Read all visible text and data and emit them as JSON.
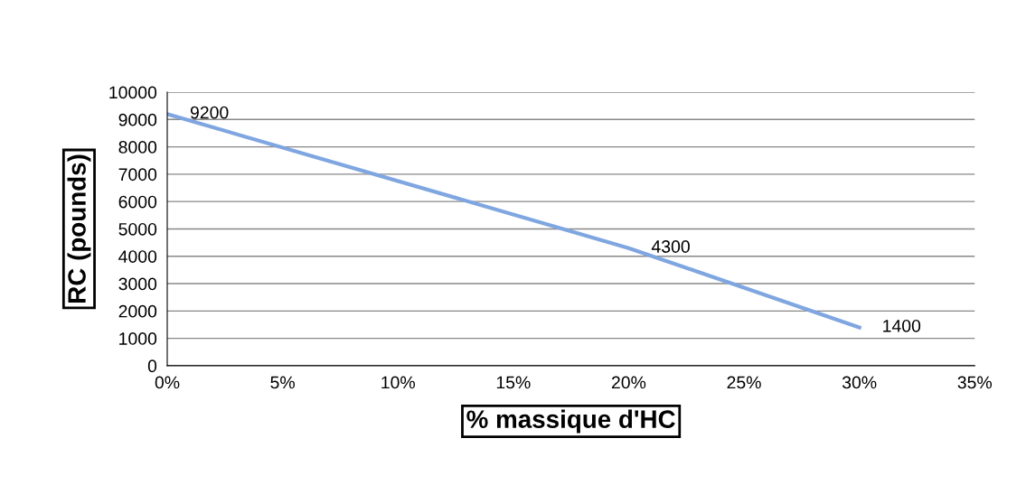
{
  "chart_data": {
    "type": "line",
    "xlabel": "% massique d'HC",
    "ylabel": "RC (pounds)",
    "x": [
      0,
      20,
      30
    ],
    "series": [
      {
        "color": "#7fa6e0",
        "values": [
          9200,
          4300,
          1400
        ]
      }
    ],
    "data_labels": true,
    "xlim": [
      0,
      35
    ],
    "xticks": [
      {
        "value": 0,
        "label": "0%"
      },
      {
        "value": 5,
        "label": "5%"
      },
      {
        "value": 10,
        "label": "10%"
      },
      {
        "value": 15,
        "label": "15%"
      },
      {
        "value": 20,
        "label": "20%"
      },
      {
        "value": 25,
        "label": "25%"
      },
      {
        "value": 30,
        "label": "30%"
      },
      {
        "value": 35,
        "label": "35%"
      }
    ],
    "ylim": [
      0,
      10000
    ],
    "yticks": [
      0,
      1000,
      2000,
      3000,
      4000,
      5000,
      6000,
      7000,
      8000,
      9000,
      10000
    ],
    "grid": "y",
    "marker": "none",
    "line_style": "solid",
    "legend": false
  }
}
